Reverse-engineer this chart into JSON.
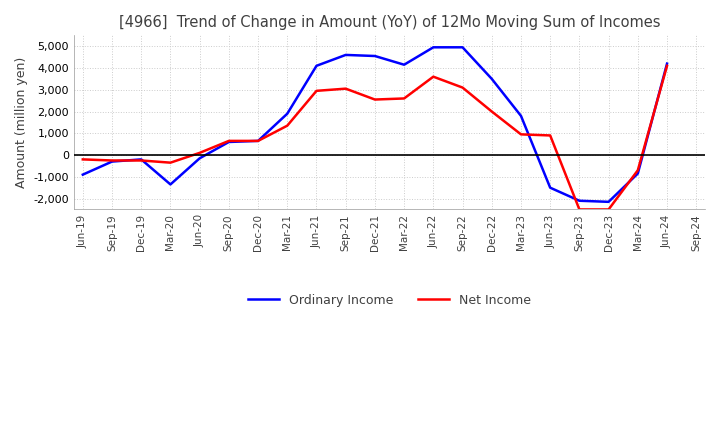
{
  "title": "[4966]  Trend of Change in Amount (YoY) of 12Mo Moving Sum of Incomes",
  "ylabel": "Amount (million yen)",
  "x_labels": [
    "Jun-19",
    "Sep-19",
    "Dec-19",
    "Mar-20",
    "Jun-20",
    "Sep-20",
    "Dec-20",
    "Mar-21",
    "Jun-21",
    "Sep-21",
    "Dec-21",
    "Mar-22",
    "Jun-22",
    "Sep-22",
    "Dec-22",
    "Mar-23",
    "Jun-23",
    "Sep-23",
    "Dec-23",
    "Mar-24",
    "Jun-24",
    "Sep-24"
  ],
  "ordinary_income": [
    -900,
    -300,
    -200,
    -1350,
    -150,
    600,
    650,
    1900,
    4100,
    4600,
    4550,
    4150,
    4950,
    4950,
    3500,
    1800,
    -1500,
    -2100,
    -2150,
    -850,
    4200,
    null
  ],
  "net_income": [
    -200,
    -250,
    -250,
    -350,
    100,
    650,
    650,
    1350,
    2950,
    3050,
    2550,
    2600,
    3600,
    3100,
    2000,
    950,
    900,
    -2500,
    -2500,
    -700,
    4100,
    null
  ],
  "ordinary_color": "#0000ff",
  "net_color": "#ff0000",
  "ylim": [
    -2500,
    5500
  ],
  "yticks": [
    -2000,
    -1000,
    0,
    1000,
    2000,
    3000,
    4000,
    5000
  ],
  "grid_color": "#cccccc",
  "background_color": "#ffffff",
  "title_color": "#404040"
}
